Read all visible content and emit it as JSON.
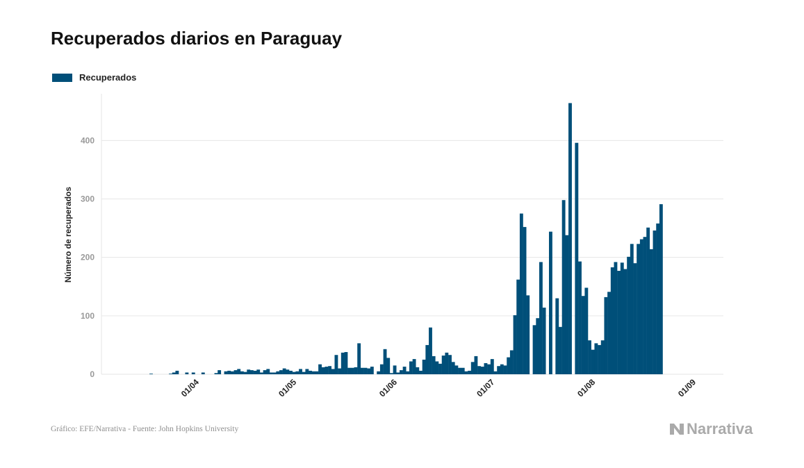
{
  "title": "Recuperados diarios en Paraguay",
  "legend": {
    "label": "Recuperados",
    "color": "#004f79"
  },
  "source": "Gráfico: EFE/Narrativa - Fuente: John Hopkins University",
  "brand": {
    "name": "Narrativa",
    "icon": "narrativa-logo-icon"
  },
  "colors": {
    "bar": "#004f79",
    "grid": "#e6e6e6",
    "tick_text": "#999999",
    "axis_text": "#222222"
  },
  "chart_data": {
    "type": "bar",
    "title": "Recuperados diarios en Paraguay",
    "ylabel": "Número de recuperados",
    "xlabel": "",
    "ylim": [
      0,
      480
    ],
    "yticks": [
      0,
      100,
      200,
      300,
      400
    ],
    "grid": true,
    "legend_position": "top-left",
    "x_start": "2020-03-10",
    "x_end": "2020-09-01",
    "xticks": [
      {
        "date": "2020-04-01",
        "label": "01/04"
      },
      {
        "date": "2020-05-01",
        "label": "01/05"
      },
      {
        "date": "2020-06-01",
        "label": "01/06"
      },
      {
        "date": "2020-07-01",
        "label": "01/07"
      },
      {
        "date": "2020-08-01",
        "label": "01/08"
      },
      {
        "date": "2020-09-01",
        "label": "01/09"
      }
    ],
    "series": [
      {
        "name": "Recuperados",
        "start_date": "2020-03-10",
        "values": [
          0,
          0,
          0,
          0,
          0,
          0,
          0,
          0,
          1,
          0,
          0,
          0,
          0,
          0,
          1,
          3,
          6,
          0,
          0,
          3,
          0,
          3,
          0,
          0,
          3,
          0,
          0,
          0,
          2,
          7,
          0,
          5,
          6,
          5,
          7,
          9,
          5,
          4,
          8,
          7,
          6,
          8,
          3,
          7,
          9,
          3,
          3,
          5,
          7,
          10,
          8,
          6,
          4,
          5,
          9,
          4,
          9,
          6,
          5,
          5,
          17,
          12,
          13,
          14,
          9,
          33,
          10,
          37,
          38,
          11,
          11,
          12,
          53,
          11,
          11,
          10,
          13,
          0,
          5,
          17,
          43,
          28,
          2,
          15,
          3,
          7,
          13,
          5,
          22,
          26,
          12,
          6,
          25,
          50,
          80,
          31,
          22,
          18,
          32,
          37,
          33,
          21,
          15,
          11,
          11,
          5,
          6,
          21,
          31,
          14,
          13,
          19,
          17,
          26,
          5,
          14,
          17,
          15,
          29,
          41,
          101,
          162,
          275,
          252,
          135,
          0,
          84,
          96,
          192,
          114,
          0,
          244,
          0,
          130,
          81,
          298,
          238,
          464,
          0,
          396,
          193,
          134,
          148,
          58,
          42,
          53,
          50,
          58,
          132,
          141,
          183,
          192,
          177,
          191,
          180,
          201,
          223,
          190,
          223,
          231,
          235,
          251,
          214,
          246,
          258,
          291
        ]
      }
    ]
  }
}
